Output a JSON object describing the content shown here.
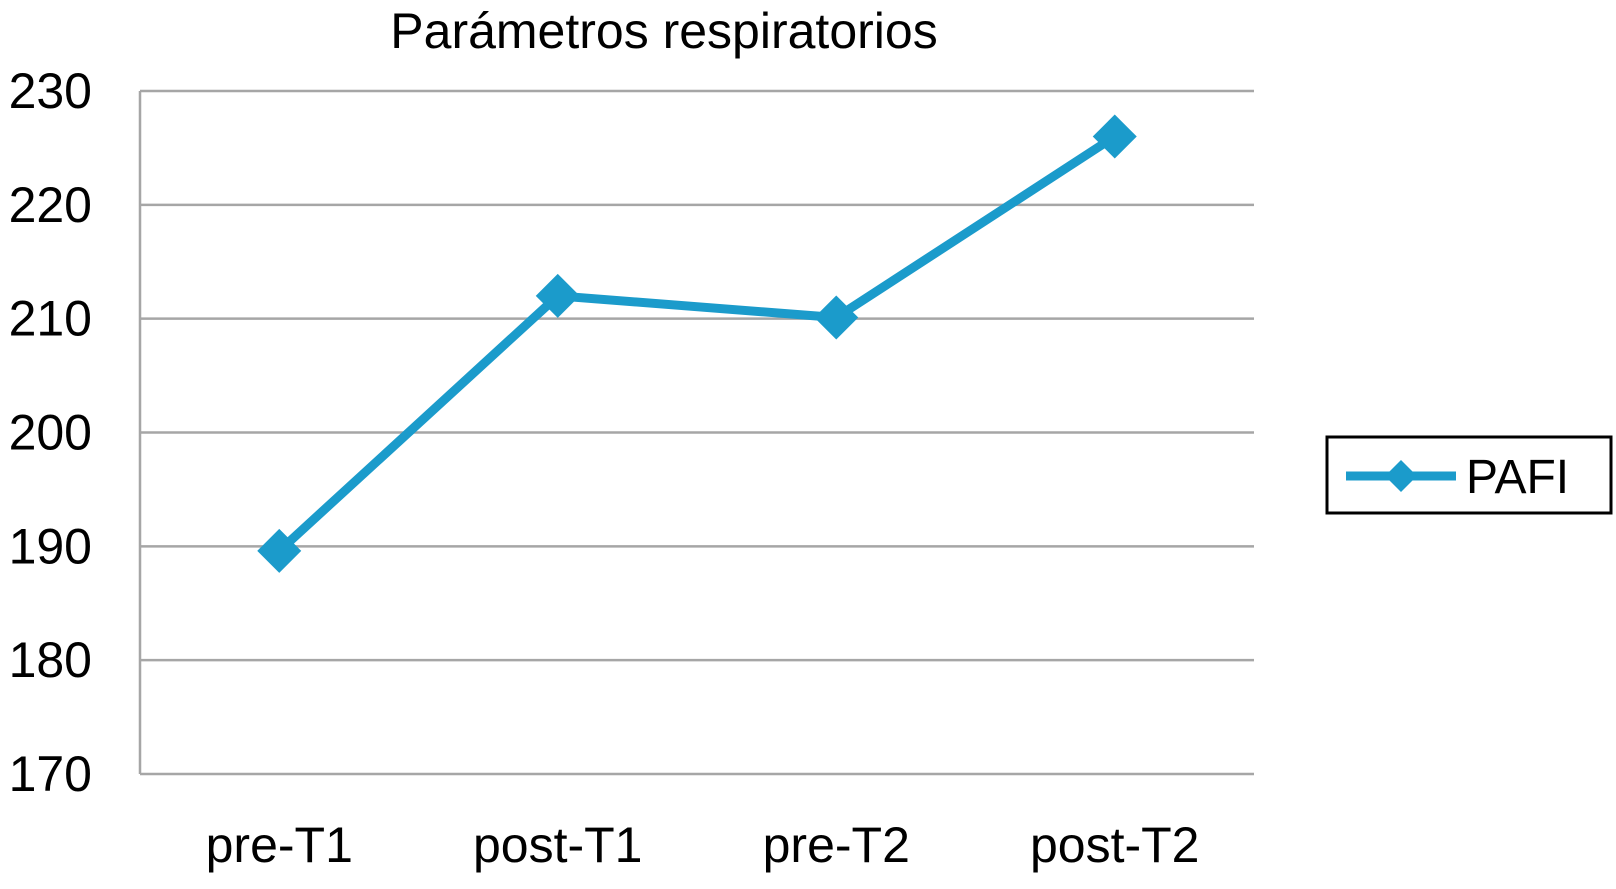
{
  "chart_data": {
    "type": "line",
    "title": "Parámetros respiratorios",
    "xlabel": "",
    "ylabel": "",
    "categories": [
      "pre-T1",
      "post-T1",
      "pre-T2",
      "post-T2"
    ],
    "series": [
      {
        "name": "PAFI",
        "values": [
          189.6,
          212.0,
          210.1,
          226.0
        ],
        "color": "#1b9bcb",
        "marker": "diamond"
      }
    ],
    "ylim": [
      170,
      230
    ],
    "yticks": [
      "170",
      "180",
      "190",
      "200",
      "210",
      "220",
      "230"
    ],
    "grid": true,
    "legend": "right",
    "gridline_color": "#a6a6a6"
  }
}
